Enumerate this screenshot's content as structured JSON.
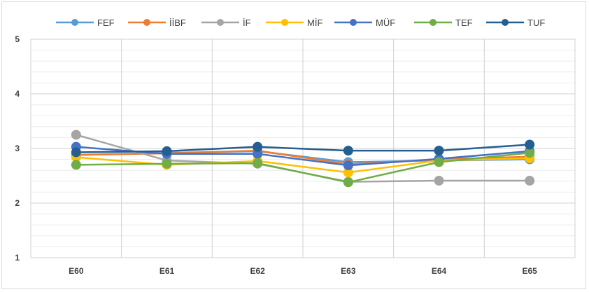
{
  "chart_data": {
    "type": "line",
    "categories": [
      "E60",
      "E61",
      "E62",
      "E63",
      "E64",
      "E65"
    ],
    "ylim": [
      1,
      5
    ],
    "yticks": [
      1,
      2,
      3,
      4,
      5
    ],
    "grid": true,
    "legend_position": "top",
    "series": [
      {
        "name": "FEF",
        "color": "#5b9bd5",
        "values": [
          2.88,
          2.92,
          2.95,
          2.75,
          2.78,
          2.8
        ]
      },
      {
        "name": "İİBF",
        "color": "#ed7d31",
        "values": [
          2.88,
          2.91,
          2.96,
          2.71,
          2.8,
          2.85
        ]
      },
      {
        "name": "İF",
        "color": "#a5a5a5",
        "values": [
          3.25,
          2.78,
          2.72,
          2.39,
          2.41,
          2.41
        ]
      },
      {
        "name": "MİF",
        "color": "#ffc000",
        "values": [
          2.84,
          2.7,
          2.77,
          2.56,
          2.78,
          2.82
        ]
      },
      {
        "name": "MÜF",
        "color": "#4472c4",
        "values": [
          3.03,
          2.9,
          2.9,
          2.69,
          2.81,
          2.95
        ]
      },
      {
        "name": "TEF",
        "color": "#70ad47",
        "values": [
          2.7,
          2.72,
          2.73,
          2.38,
          2.75,
          2.92
        ]
      },
      {
        "name": "TUF",
        "color": "#255e91",
        "values": [
          2.93,
          2.95,
          3.03,
          2.96,
          2.96,
          3.07
        ]
      }
    ]
  }
}
